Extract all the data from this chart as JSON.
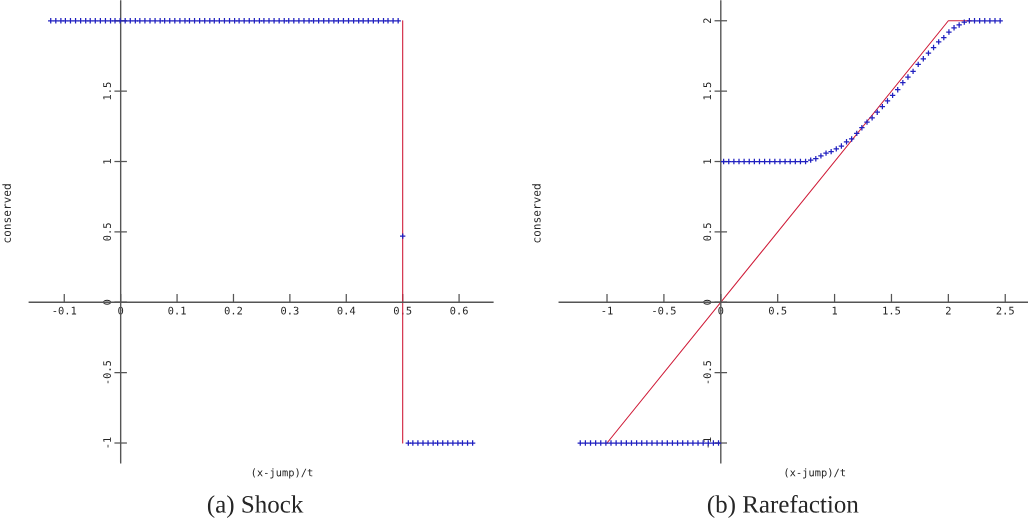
{
  "chart_data": [
    {
      "type": "scatter",
      "title": "(a) Shock",
      "xlabel": "(x-jump)/t",
      "ylabel": "conserved",
      "xlim": [
        -0.162,
        0.66
      ],
      "ylim": [
        -1.14,
        2.14
      ],
      "xticks": [
        -0.1,
        0,
        0.1,
        0.2,
        0.3,
        0.4,
        0.5,
        0.6
      ],
      "yticks": [
        -1,
        -0.5,
        0,
        0.5,
        1,
        1.5,
        {
          "value": 2,
          "label": null
        }
      ],
      "series": [
        {
          "type": "line",
          "color": "#d0203c",
          "line_style": "solid",
          "x": [
            0.5,
            0.5
          ],
          "values": [
            2,
            -1
          ]
        },
        {
          "color": "#2020c0",
          "marker": "cross",
          "x": [
            -0.124,
            -0.115,
            -0.106,
            -0.098,
            -0.089,
            -0.08,
            -0.071,
            -0.062,
            -0.054,
            -0.045,
            -0.036,
            -0.027,
            -0.018,
            -0.01,
            -0.001,
            0.008,
            0.017,
            0.026,
            0.034,
            0.043,
            0.052,
            0.061,
            0.07,
            0.078,
            0.087,
            0.096,
            0.105,
            0.114,
            0.122,
            0.131,
            0.14,
            0.149,
            0.158,
            0.166,
            0.175,
            0.184,
            0.193,
            0.202,
            0.21,
            0.219,
            0.228,
            0.237,
            0.246,
            0.254,
            0.263,
            0.272,
            0.281,
            0.29,
            0.298,
            0.307,
            0.316,
            0.325,
            0.334,
            0.342,
            0.351,
            0.36,
            0.369,
            0.378,
            0.386,
            0.395,
            0.404,
            0.413,
            0.422,
            0.43,
            0.439,
            0.448,
            0.457,
            0.466,
            0.474,
            0.483,
            0.492,
            0.5,
            0.51,
            0.518,
            0.527,
            0.536,
            0.545,
            0.554,
            0.562,
            0.571,
            0.58,
            0.589,
            0.598,
            0.606,
            0.615,
            0.624
          ],
          "values": [
            2,
            2,
            2,
            2,
            2,
            2,
            2,
            2,
            2,
            2,
            2,
            2,
            2,
            2,
            2,
            2,
            2,
            2,
            2,
            2,
            2,
            2,
            2,
            2,
            2,
            2,
            2,
            2,
            2,
            2,
            2,
            2,
            2,
            2,
            2,
            2,
            2,
            2,
            2,
            2,
            2,
            2,
            2,
            2,
            2,
            2,
            2,
            2,
            2,
            2,
            2,
            2,
            2,
            2,
            2,
            2,
            2,
            2,
            2,
            2,
            2,
            2,
            2,
            2,
            2,
            2,
            2,
            2,
            2,
            2,
            2,
            0.47,
            -1,
            -1,
            -1,
            -1,
            -1,
            -1,
            -1,
            -1,
            -1,
            -1,
            -1,
            -1,
            -1,
            -1
          ]
        }
      ]
    },
    {
      "type": "scatter",
      "title": "(b) Rarefaction",
      "xlabel": "(x-jump)/t",
      "ylabel": "conserved",
      "xlim": [
        -1.42,
        2.7
      ],
      "ylim": [
        -1.14,
        2.14
      ],
      "xticks": [
        -1,
        -0.5,
        0,
        0.5,
        1,
        1.5,
        2,
        2.5
      ],
      "yticks": [
        -1,
        -0.5,
        0,
        0.5,
        1,
        1.5,
        2
      ],
      "series": [
        {
          "type": "line",
          "color": "#d0203c",
          "line_style": "solid",
          "x": [
            -1,
            2,
            2.2
          ],
          "values": [
            -1,
            2,
            2
          ]
        },
        {
          "color": "#2020c0",
          "marker": "cross",
          "x": [
            -1.235,
            -1.19,
            -1.145,
            -1.1,
            -1.055,
            -1.01,
            -0.965,
            -0.92,
            -0.875,
            -0.83,
            -0.785,
            -0.74,
            -0.695,
            -0.65,
            -0.605,
            -0.56,
            -0.515,
            -0.47,
            -0.425,
            -0.38,
            -0.335,
            -0.29,
            -0.245,
            -0.2,
            -0.155,
            -0.11,
            -0.065,
            -0.02,
            0.025,
            0.07,
            0.115,
            0.16,
            0.205,
            0.25,
            0.295,
            0.34,
            0.385,
            0.43,
            0.475,
            0.52,
            0.565,
            0.61,
            0.655,
            0.7,
            0.745,
            0.79,
            0.835,
            0.88,
            0.925,
            0.97,
            1.015,
            1.06,
            1.105,
            1.15,
            1.195,
            1.24,
            1.285,
            1.33,
            1.375,
            1.42,
            1.465,
            1.51,
            1.555,
            1.6,
            1.645,
            1.69,
            1.735,
            1.78,
            1.825,
            1.87,
            1.915,
            1.96,
            2.005,
            2.05,
            2.095,
            2.14,
            2.185,
            2.23,
            2.275,
            2.32,
            2.365,
            2.41,
            2.455
          ],
          "values": [
            -1,
            -1,
            -1,
            -1,
            -1,
            -1,
            -1,
            -1,
            -1,
            -1,
            -1,
            -1,
            -1,
            -1,
            -1,
            -1,
            -1,
            -1,
            -1,
            -1,
            -1,
            -1,
            -1,
            -1,
            -1,
            -1,
            -1,
            -1,
            1,
            1,
            1,
            1,
            1,
            1,
            1,
            1,
            1,
            1,
            1,
            1,
            1,
            1,
            1,
            1,
            1,
            1.01,
            1.02,
            1.04,
            1.06,
            1.07,
            1.09,
            1.11,
            1.14,
            1.16,
            1.2,
            1.24,
            1.28,
            1.31,
            1.35,
            1.39,
            1.43,
            1.47,
            1.51,
            1.56,
            1.6,
            1.64,
            1.69,
            1.73,
            1.77,
            1.81,
            1.85,
            1.88,
            1.92,
            1.95,
            1.97,
            1.99,
            2,
            2,
            2,
            2,
            2,
            2,
            2
          ]
        }
      ]
    }
  ]
}
